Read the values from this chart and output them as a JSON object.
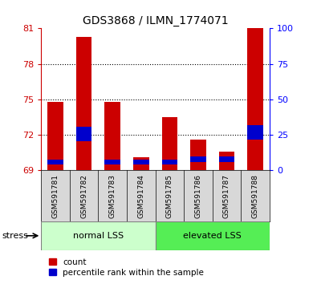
{
  "title": "GDS3868 / ILMN_1774071",
  "samples": [
    "GSM591781",
    "GSM591782",
    "GSM591783",
    "GSM591784",
    "GSM591785",
    "GSM591786",
    "GSM591787",
    "GSM591788"
  ],
  "red_values": [
    74.8,
    80.3,
    74.8,
    70.1,
    73.5,
    71.6,
    70.6,
    81.0
  ],
  "blue_values": [
    0.4,
    1.2,
    0.4,
    0.4,
    0.4,
    0.5,
    0.5,
    1.2
  ],
  "blue_positions": [
    69.5,
    71.5,
    69.5,
    69.5,
    69.5,
    69.7,
    69.7,
    71.6
  ],
  "y_min": 69,
  "y_max": 81,
  "y_ticks": [
    69,
    72,
    75,
    78,
    81
  ],
  "y2_ticks": [
    0,
    25,
    50,
    75,
    100
  ],
  "group1_label": "normal LSS",
  "group2_label": "elevated LSS",
  "group1_count": 4,
  "stress_label": "stress",
  "legend_count": "count",
  "legend_percentile": "percentile rank within the sample",
  "bar_width": 0.55,
  "red_color": "#cc0000",
  "blue_color": "#0000cc",
  "group1_color": "#ccffcc",
  "group2_color": "#55ee55",
  "sample_bg_color": "#d8d8d8",
  "plot_bg_color": "#ffffff"
}
